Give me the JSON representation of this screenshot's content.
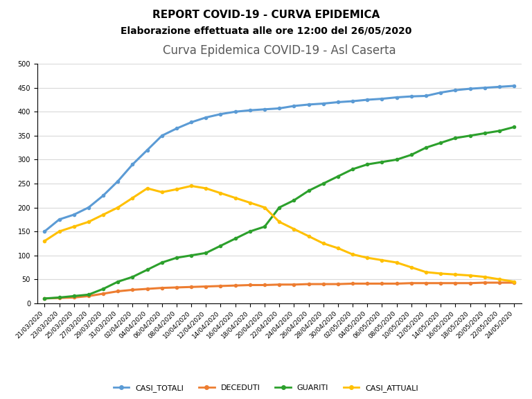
{
  "header": {
    "title": "REPORT COVID-19 - CURVA EPIDEMICA",
    "subtitle": "Elaborazione effettuata alle ore 12:00 del 26/05/2020"
  },
  "chart_data": {
    "type": "line",
    "title": "Curva Epidemica COVID-19 - Asl Caserta",
    "categories": [
      "21/03/2020",
      "23/03/2020",
      "25/03/2020",
      "27/03/2020",
      "29/03/2020",
      "31/03/2020",
      "02/04/2020",
      "04/04/2020",
      "06/04/2020",
      "08/04/2020",
      "10/04/2020",
      "12/04/2020",
      "14/04/2020",
      "16/04/2020",
      "18/04/2020",
      "20/04/2020",
      "22/04/2020",
      "24/04/2020",
      "26/04/2020",
      "28/04/2020",
      "30/04/2020",
      "02/05/2020",
      "04/05/2020",
      "06/05/2020",
      "08/05/2020",
      "10/05/2020",
      "12/05/2020",
      "14/05/2020",
      "16/05/2020",
      "18/05/2020",
      "20/05/2020",
      "22/05/2020",
      "24/05/2020"
    ],
    "series": [
      {
        "name": "CASI_TOTALI",
        "color": "#5b9bd5",
        "marker": "o",
        "values": [
          150,
          175,
          185,
          200,
          225,
          255,
          290,
          320,
          350,
          365,
          378,
          388,
          395,
          400,
          403,
          405,
          407,
          412,
          415,
          417,
          420,
          422,
          425,
          427,
          430,
          432,
          433,
          440,
          445,
          448,
          450,
          452,
          454
        ]
      },
      {
        "name": "DECEDUTI",
        "color": "#ed7d31",
        "marker": "o",
        "values": [
          10,
          11,
          12,
          15,
          20,
          25,
          28,
          30,
          32,
          33,
          34,
          35,
          36,
          37,
          38,
          38,
          39,
          39,
          40,
          40,
          40,
          41,
          41,
          41,
          41,
          42,
          42,
          42,
          42,
          42,
          43,
          43,
          43
        ]
      },
      {
        "name": "GUARITI",
        "color": "#2ca02c",
        "marker": "o",
        "values": [
          10,
          12,
          15,
          18,
          30,
          45,
          55,
          70,
          85,
          95,
          100,
          105,
          120,
          135,
          150,
          160,
          200,
          215,
          235,
          250,
          265,
          280,
          290,
          295,
          300,
          310,
          325,
          335,
          345,
          350,
          355,
          360,
          368
        ]
      },
      {
        "name": "CASI_ATTUALI",
        "color": "#ffc000",
        "marker": "o",
        "values": [
          130,
          150,
          160,
          170,
          185,
          200,
          220,
          240,
          232,
          238,
          245,
          240,
          230,
          220,
          210,
          200,
          170,
          155,
          140,
          125,
          115,
          102,
          95,
          90,
          85,
          75,
          65,
          62,
          60,
          58,
          55,
          50,
          45
        ]
      }
    ],
    "ylim": [
      0,
      500
    ],
    "yticks": [
      0,
      50,
      100,
      150,
      200,
      250,
      300,
      350,
      400,
      450,
      500
    ],
    "grid": true,
    "legend": "lower center"
  }
}
